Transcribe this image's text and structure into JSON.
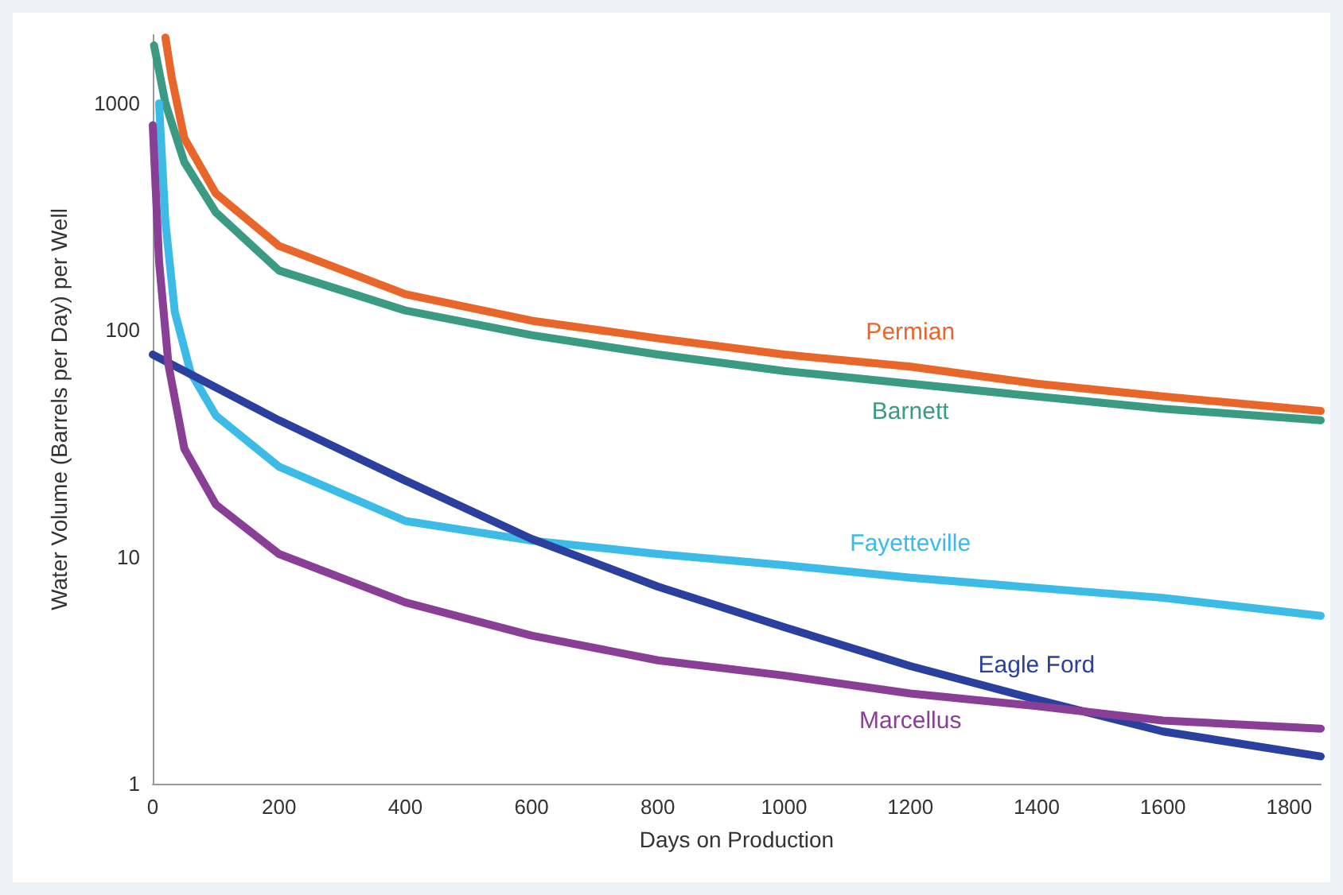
{
  "chart_data": {
    "type": "line",
    "xlabel": "Days on Production",
    "ylabel": "Water Volume (Barrels per Day) per Well",
    "log": "y",
    "grid": false,
    "legend": false,
    "marker": "none",
    "line_style": "solid",
    "xlim": [
      0,
      1850
    ],
    "xticks": [
      0,
      200,
      400,
      600,
      800,
      1000,
      1200,
      1400,
      1600,
      1800
    ],
    "ylim": [
      1,
      2000
    ],
    "yticks": [
      1,
      10,
      100,
      1000
    ],
    "series": [
      {
        "name": "Permian",
        "color": "#e8662a",
        "x": [
          20,
          30,
          50,
          100,
          200,
          400,
          600,
          800,
          1000,
          1200,
          1400,
          1600,
          1850
        ],
        "values": [
          1950,
          1300,
          700,
          400,
          235,
          144,
          110,
          92,
          78,
          69,
          58,
          51,
          44
        ]
      },
      {
        "name": "Barnett",
        "color": "#3a9a82",
        "x": [
          2,
          20,
          50,
          100,
          200,
          400,
          600,
          800,
          1000,
          1200,
          1400,
          1600,
          1850
        ],
        "values": [
          1800,
          1000,
          550,
          330,
          183,
          122,
          95,
          78,
          66,
          58,
          51,
          45,
          40
        ]
      },
      {
        "name": "Fayetteville",
        "color": "#3bbbe6",
        "x": [
          10,
          20,
          35,
          60,
          100,
          200,
          400,
          600,
          800,
          1000,
          1200,
          1400,
          1600,
          1850
        ],
        "values": [
          1000,
          300,
          120,
          65,
          42,
          25,
          14.4,
          11.8,
          10.3,
          9.2,
          8.1,
          7.3,
          6.6,
          5.5
        ]
      },
      {
        "name": "Eagle Ford",
        "color": "#2a3f9e",
        "x": [
          0,
          200,
          400,
          600,
          800,
          1000,
          1200,
          1400,
          1600,
          1850
        ],
        "values": [
          78,
          40,
          21.7,
          12,
          7.4,
          4.9,
          3.3,
          2.35,
          1.7,
          1.32
        ]
      },
      {
        "name": "Marcellus",
        "color": "#8a3f97",
        "x": [
          0,
          10,
          25,
          50,
          100,
          200,
          400,
          600,
          800,
          1000,
          1200,
          1400,
          1600,
          1850
        ],
        "values": [
          800,
          200,
          70,
          30,
          17,
          10.3,
          6.3,
          4.5,
          3.5,
          3.0,
          2.5,
          2.2,
          1.9,
          1.75
        ]
      }
    ]
  }
}
